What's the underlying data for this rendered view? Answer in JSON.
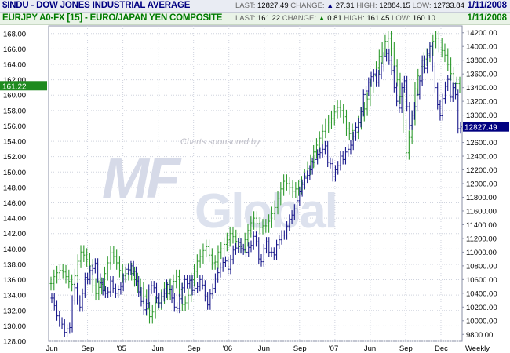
{
  "header_indu": {
    "symbol": "$INDU - DOW JONES INDUSTRIAL AVERAGE",
    "last_label": "LAST:",
    "last": "12827.49",
    "change_label": "CHANGE:",
    "change": "27.31",
    "high_label": "HIGH:",
    "high": "12884.15",
    "low_label": "LOW:",
    "low": "12733.84",
    "date": "1/11/2008"
  },
  "header_eurjpy": {
    "symbol": "EURJPY A0-FX [15] - EURO/JAPAN YEN COMPOSITE",
    "last_label": "LAST:",
    "last": "161.22",
    "change_label": "CHANGE:",
    "change": "0.81",
    "high_label": "HIGH:",
    "high": "161.45",
    "low_label": "LOW:",
    "low": "160.10",
    "date": "1/11/2008"
  },
  "watermark": {
    "sponsor_text": "Charts sponsored by",
    "logo_top": "MF",
    "logo_bottom": "Global"
  },
  "colors": {
    "indu": "#1a1a8c",
    "eurjpy": "#2e9a2e",
    "grid": "#cfd3de",
    "frame": "#8a8fa5",
    "eurjpy_tag": "#1f8a1f",
    "indu_tag": "#000080"
  },
  "chart_data": {
    "type": "line",
    "style": "ohlc-bars",
    "x_ticks": [
      "Jun",
      "Sep",
      "'05",
      "Jun",
      "Sep",
      "'06",
      "Jun",
      "Sep",
      "'07",
      "Jun",
      "Sep",
      "Dec",
      "Weekly"
    ],
    "left_axis": {
      "ticks": [
        "168.00",
        "166.00",
        "164.00",
        "162.00",
        "160.00",
        "158.00",
        "156.00",
        "154.00",
        "152.00",
        "150.00",
        "148.00",
        "146.00",
        "144.00",
        "142.00",
        "140.00",
        "138.00",
        "136.00",
        "134.00",
        "132.00",
        "130.00",
        "128.00"
      ],
      "range": [
        128,
        169
      ],
      "current_tag": "161.22"
    },
    "right_axis": {
      "ticks": [
        "14200.00",
        "14000.00",
        "13800.00",
        "13600.00",
        "13400.00",
        "13200.00",
        "13000.00",
        "12800.00",
        "12600.00",
        "12400.00",
        "12200.00",
        "12000.00",
        "11800.00",
        "11600.00",
        "11400.00",
        "11200.00",
        "11000.00",
        "10800.00",
        "10600.00",
        "10400.00",
        "10200.00",
        "10000.00",
        "9800.00"
      ],
      "range": [
        9700,
        14300
      ],
      "current_tag": "12827.49"
    },
    "series": [
      {
        "name": "$INDU",
        "axis": "right",
        "values": [
          10330,
          10220,
          10070,
          9980,
          9950,
          9830,
          9880,
          9900,
          10300,
          10480,
          10300,
          10200,
          10400,
          10630,
          10600,
          10730,
          10760,
          10840,
          10620,
          10550,
          10440,
          10400,
          10420,
          10580,
          10470,
          10400,
          10450,
          10500,
          10620,
          10750,
          10740,
          10800,
          10720,
          10580,
          10420,
          10280,
          10160,
          10250,
          10460,
          10510,
          10480,
          10330,
          10260,
          10350,
          10400,
          10530,
          10450,
          10330,
          10200,
          10180,
          10320,
          10480,
          10600,
          10540,
          10590,
          10440,
          10470,
          10500,
          10600,
          10520,
          10350,
          10230,
          10390,
          10470,
          10620,
          10700,
          10780,
          10850,
          10870,
          10750,
          10890,
          11030,
          11060,
          11140,
          11050,
          11030,
          11000,
          11070,
          11100,
          11230,
          11150,
          10900,
          10860,
          11050,
          11150,
          11000,
          11000,
          10960,
          11110,
          11180,
          11250,
          11250,
          11380,
          11480,
          11540,
          11630,
          11750,
          11880,
          11990,
          12080,
          12120,
          12200,
          12310,
          12350,
          12430,
          12450,
          12500,
          12550,
          12310,
          12290,
          12100,
          12200,
          12260,
          12400,
          12350,
          12460,
          12500,
          12560,
          12690,
          12820,
          12890,
          13050,
          13300,
          13350,
          13480,
          13560,
          13600,
          13480,
          13590,
          13700,
          13850,
          13900,
          13800,
          13650,
          13400,
          13200,
          13100,
          13400,
          13500,
          13120,
          12850,
          13000,
          13120,
          13300,
          13500,
          13800,
          13680,
          13900,
          14000,
          13700,
          13400,
          13150,
          12990,
          13240,
          13420,
          13520,
          13260,
          13400,
          13300,
          12800,
          12827
        ]
      },
      {
        "name": "EURJPY",
        "axis": "left",
        "values": [
          135.5,
          136.4,
          136.9,
          137.2,
          137.0,
          136.4,
          135.8,
          135.4,
          136.5,
          138.4,
          139.6,
          139.2,
          138.6,
          137.8,
          135.2,
          134.2,
          135.0,
          135.4,
          136.8,
          138.2,
          139.5,
          139.0,
          138.2,
          137.2,
          136.5,
          136.8,
          137.3,
          136.8,
          136.0,
          135.2,
          134.8,
          133.8,
          132.2,
          131.2,
          131.8,
          133.0,
          133.0,
          133.8,
          134.8,
          134.2,
          135.2,
          135.8,
          136.4,
          134.7,
          132.8,
          133.0,
          134.0,
          136.0,
          137.1,
          138.4,
          139.0,
          139.8,
          140.3,
          139.2,
          138.2,
          138.3,
          139.6,
          140.0,
          140.6,
          141.2,
          142.0,
          141.6,
          141.0,
          140.3,
          140.4,
          141.2,
          142.4,
          143.4,
          144.0,
          143.3,
          142.8,
          143.0,
          143.0,
          143.6,
          144.6,
          145.4,
          146.6,
          147.8,
          148.8,
          148.5,
          148.0,
          147.5,
          147.8,
          148.0,
          148.6,
          149.5,
          150.5,
          151.4,
          152.6,
          153.5,
          154.4,
          155.3,
          156.0,
          156.5,
          157.0,
          157.8,
          158.4,
          158.0,
          157.2,
          155.6,
          155.0,
          155.4,
          155.2,
          156.4,
          157.5,
          158.2,
          159.5,
          161.2,
          162.5,
          163.5,
          165.0,
          166.0,
          167.0,
          167.4,
          166.0,
          163.8,
          162.0,
          159.8,
          156.0,
          152.5,
          154.5,
          157.0,
          160.8,
          162.5,
          163.7,
          164.7,
          165.2,
          166.0,
          167.0,
          167.4,
          166.5,
          165.8,
          165.2,
          164.0,
          162.8,
          161.5,
          161.5,
          161.2
        ]
      }
    ]
  }
}
